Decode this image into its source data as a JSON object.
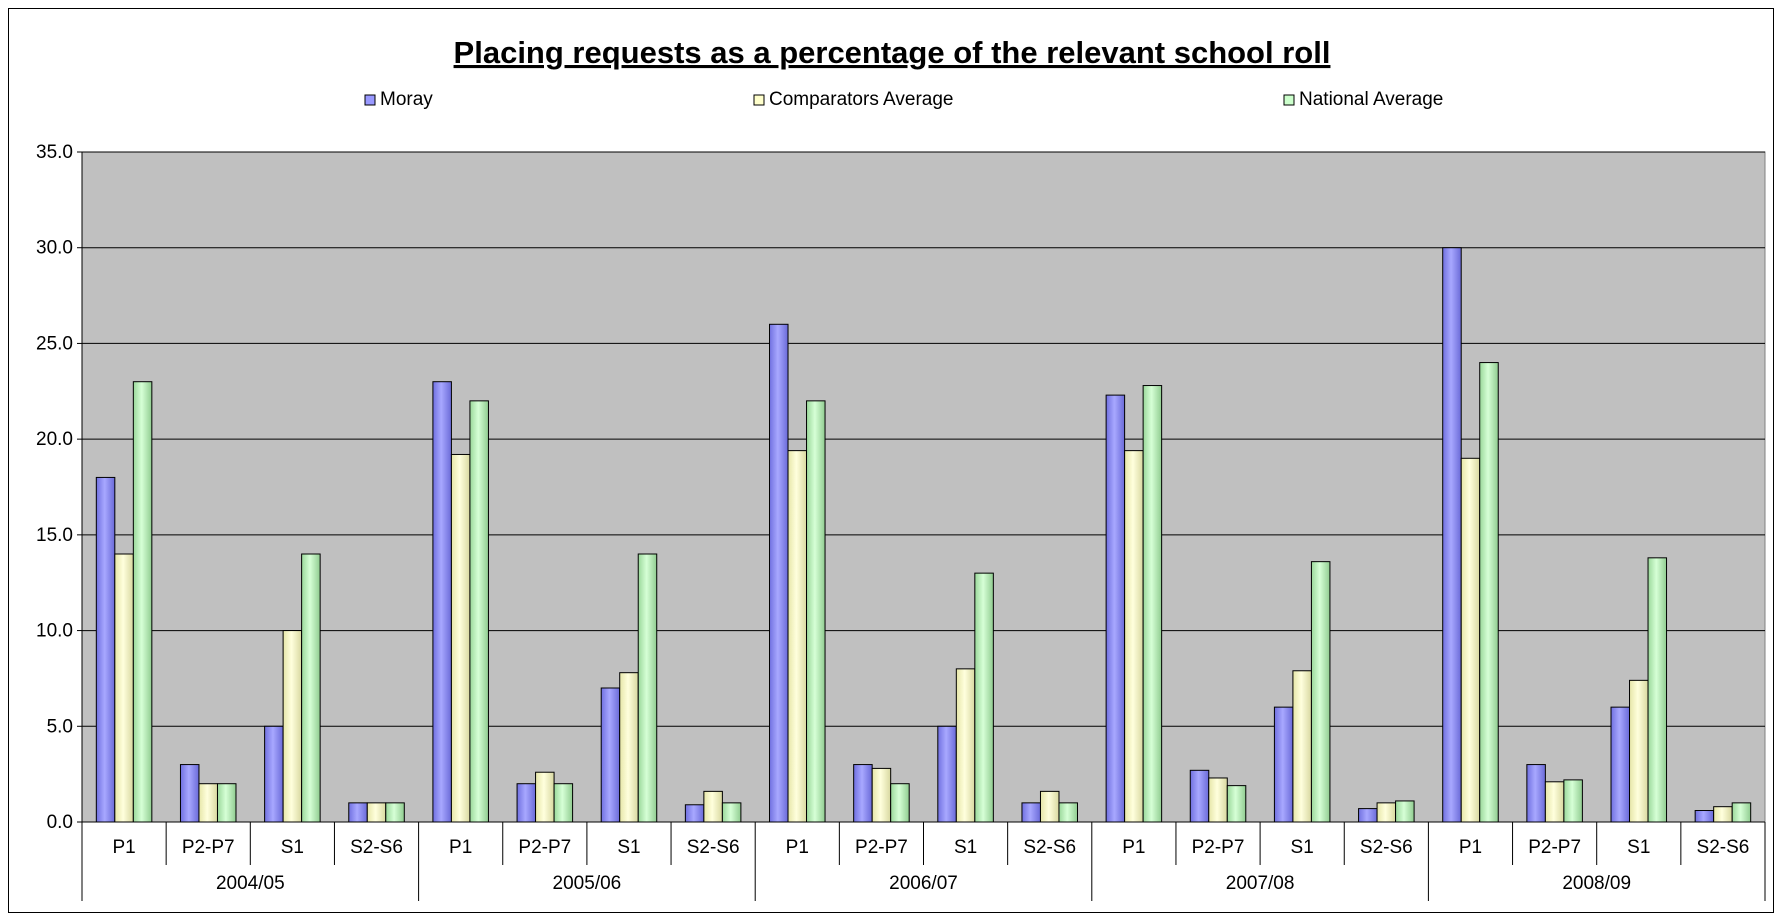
{
  "chart_data": {
    "type": "bar",
    "title": "Placing requests as a percentage of the relevant school roll",
    "xlabel": "",
    "ylabel": "",
    "ylim": [
      0,
      35
    ],
    "y_ticks": [
      "0.0",
      "5.0",
      "10.0",
      "15.0",
      "20.0",
      "25.0",
      "30.0",
      "35.0"
    ],
    "grid": true,
    "legend_position": "top",
    "groups": [
      "2004/05",
      "2005/06",
      "2006/07",
      "2007/08",
      "2008/09"
    ],
    "sub_categories": [
      "P1",
      "P2-P7",
      "S1",
      "S2-S6"
    ],
    "categories": [
      "2004/05 P1",
      "2004/05 P2-P7",
      "2004/05 S1",
      "2004/05 S2-S6",
      "2005/06 P1",
      "2005/06 P2-P7",
      "2005/06 S1",
      "2005/06 S2-S6",
      "2006/07 P1",
      "2006/07 P2-P7",
      "2006/07 S1",
      "2006/07 S2-S6",
      "2007/08 P1",
      "2007/08 P2-P7",
      "2007/08 S1",
      "2007/08 S2-S6",
      "2008/09 P1",
      "2008/09 P2-P7",
      "2008/09 S1",
      "2008/09 S2-S6"
    ],
    "series": [
      {
        "name": "Moray",
        "color": "#9999ff",
        "values": [
          18.0,
          3.0,
          5.0,
          1.0,
          23.0,
          2.0,
          7.0,
          0.9,
          26.0,
          3.0,
          5.0,
          1.0,
          22.3,
          2.7,
          6.0,
          0.7,
          30.0,
          3.0,
          6.0,
          0.6
        ]
      },
      {
        "name": "Comparators Average",
        "color": "#ffffcc",
        "values": [
          14.0,
          2.0,
          10.0,
          1.0,
          19.2,
          2.6,
          7.8,
          1.6,
          19.4,
          2.8,
          8.0,
          1.6,
          19.4,
          2.3,
          7.9,
          1.0,
          19.0,
          2.1,
          7.4,
          0.8
        ]
      },
      {
        "name": "National Average",
        "color": "#ccffcc",
        "values": [
          23.0,
          2.0,
          14.0,
          1.0,
          22.0,
          2.0,
          14.0,
          1.0,
          22.0,
          2.0,
          13.0,
          1.0,
          22.8,
          1.9,
          13.6,
          1.1,
          24.0,
          2.2,
          13.8,
          1.0
        ]
      }
    ],
    "plot_background": "#c0c0c0"
  }
}
